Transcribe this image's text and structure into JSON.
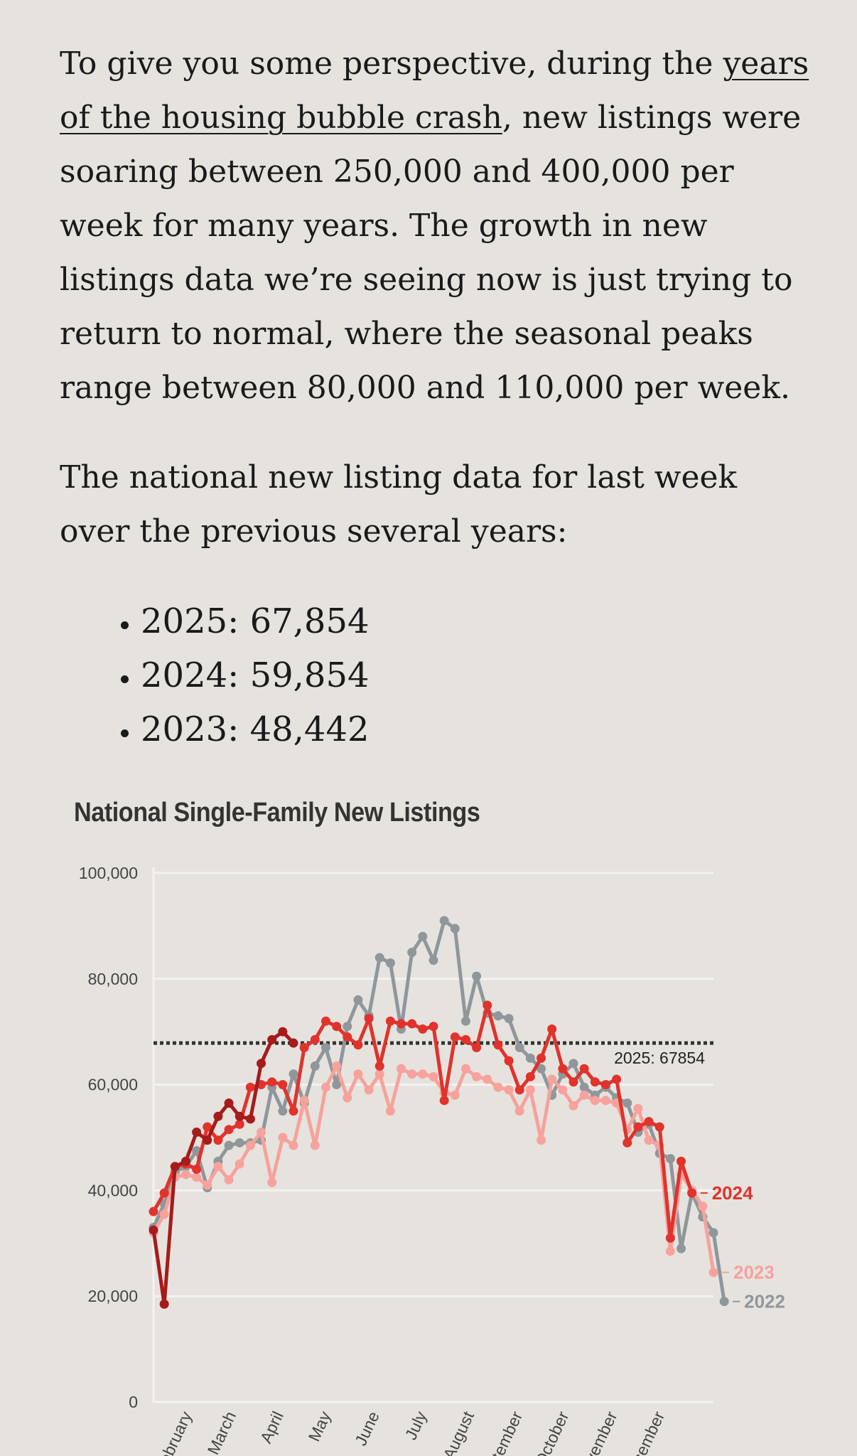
{
  "article": {
    "p1_before": "To give you some perspective, during the ",
    "p1_link": "years of the housing bubble crash",
    "p1_after": ", new listings were soaring between 250,000 and 400,000 per week for many years. The growth in new listings data we’re seeing now is just trying to return to normal, where the seasonal peaks range between 80,000 and 110,000 per week.",
    "p2": "The national new listing data for last week over the previous several years:",
    "bullets": [
      "2025: 67,854",
      "2024: 59,854",
      "2023: 48,442"
    ]
  },
  "chart_data": {
    "type": "line",
    "title": "National Single-Family New Listings",
    "ylim": [
      0,
      100000
    ],
    "yticks": [
      0,
      20000,
      40000,
      60000,
      80000,
      100000
    ],
    "ytick_labels": [
      "0",
      "20,000",
      "40,000",
      "60,000",
      "80,000",
      "100,000"
    ],
    "x_week_range": [
      1,
      53
    ],
    "month_labels": [
      {
        "label": "February",
        "week": 4.6
      },
      {
        "label": "March",
        "week": 8.7
      },
      {
        "label": "April",
        "week": 13.1
      },
      {
        "label": "May",
        "week": 17.5
      },
      {
        "label": "June",
        "week": 22
      },
      {
        "label": "July",
        "week": 26.4
      },
      {
        "label": "August",
        "week": 30.8
      },
      {
        "label": "September",
        "week": 35.3
      },
      {
        "label": "October",
        "week": 39.6
      },
      {
        "label": "November",
        "week": 44.1
      },
      {
        "label": "December",
        "week": 48.5
      }
    ],
    "grid": true,
    "reference_line": {
      "value": 67854,
      "label": "2025: 67854"
    },
    "series": [
      {
        "name": "2022",
        "color": "#8f979b",
        "values": [
          33000,
          37500,
          43500,
          44500,
          47500,
          40500,
          45500,
          48500,
          49000,
          49000,
          49500,
          59500,
          55000,
          62000,
          56500,
          63500,
          67000,
          60000,
          71000,
          76000,
          73000,
          84000,
          83000,
          70500,
          85000,
          88000,
          83500,
          91000,
          89500,
          72000,
          80500,
          73500,
          73000,
          72500,
          67000,
          65000,
          63000,
          58000,
          62000,
          64000,
          59500,
          58000,
          59500,
          57500,
          56500,
          51000,
          52500,
          47000,
          46000,
          29000,
          39500,
          35000,
          32000,
          19000
        ]
      },
      {
        "name": "2023",
        "color": "#f7a29c",
        "values": [
          32000,
          35500,
          42500,
          43000,
          42500,
          41000,
          44500,
          42000,
          45000,
          48500,
          51000,
          41500,
          50000,
          48500,
          57000,
          48500,
          59500,
          63500,
          57500,
          62000,
          59000,
          62000,
          55000,
          63000,
          62000,
          62000,
          61500,
          58500,
          58000,
          63000,
          61500,
          61000,
          59500,
          59000,
          55000,
          59000,
          49500,
          61000,
          59000,
          56000,
          58000,
          57000,
          57000,
          56500,
          51500,
          55500,
          49500,
          48500,
          28500,
          43000,
          40000,
          37000,
          24500
        ]
      },
      {
        "name": "2024",
        "color": "#e0332c",
        "values": [
          36000,
          39500,
          44500,
          45000,
          44000,
          52000,
          49500,
          51500,
          52500,
          59500,
          60000,
          60500,
          60000,
          55000,
          67000,
          68500,
          72000,
          71000,
          69000,
          67500,
          72500,
          63500,
          72000,
          71500,
          71500,
          70500,
          71000,
          57000,
          69000,
          68500,
          67000,
          75000,
          67500,
          64500,
          59000,
          61500,
          65000,
          70500,
          63000,
          60500,
          63000,
          60500,
          60000,
          61000,
          49000,
          52000,
          53000,
          52000,
          31000,
          45500,
          39500
        ]
      },
      {
        "name": "2025",
        "color": "#a61b1b",
        "values": [
          32500,
          18500,
          44500,
          45500,
          51000,
          49500,
          54000,
          56500,
          54000,
          53500,
          64000,
          68500,
          70000,
          67854
        ]
      }
    ],
    "series_labels": [
      "2024",
      "2023",
      "2022"
    ]
  }
}
